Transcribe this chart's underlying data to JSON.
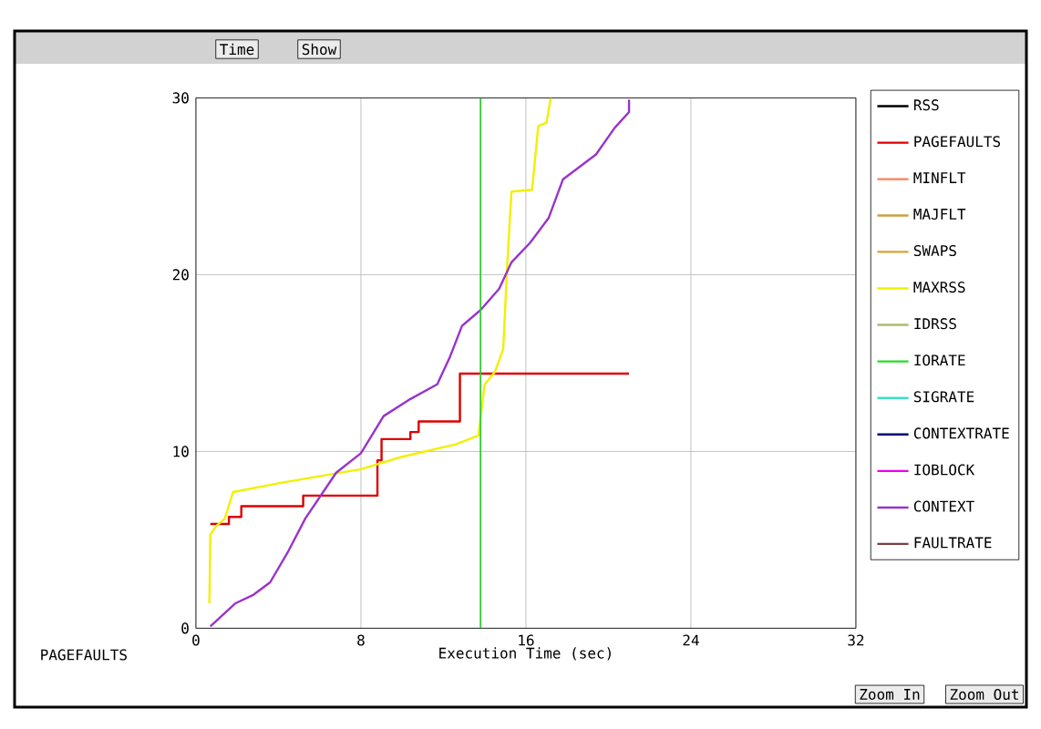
{
  "chart_data": {
    "type": "line",
    "xlabel": "Execution Time (sec)",
    "ylabel": "PAGEFAULTS",
    "xlim": [
      0,
      32
    ],
    "ylim": [
      0,
      30
    ],
    "xticks": [
      0,
      8,
      16,
      24,
      32
    ],
    "yticks": [
      0,
      10,
      20,
      30
    ],
    "grid": true,
    "legend": "right",
    "line_style": "solid",
    "marker": "none",
    "series": [
      {
        "name": "RSS",
        "color": "#000000"
      },
      {
        "name": "PAGEFAULTS",
        "color": "#dd0000",
        "type": "step",
        "x": [
          0.7,
          1.6,
          2.2,
          5.2,
          8.5,
          8.8,
          9.0,
          10.4,
          10.8,
          12.5,
          12.8,
          21.0
        ],
        "values": [
          5.9,
          6.3,
          6.9,
          7.5,
          7.5,
          9.5,
          10.7,
          11.1,
          11.7,
          11.7,
          14.4,
          14.4
        ]
      },
      {
        "name": "MINFLT",
        "color": "#ff7f50"
      },
      {
        "name": "MAJFLT",
        "color": "#c8a040"
      },
      {
        "name": "SWAPS",
        "color": "#e0a030"
      },
      {
        "name": "MAXRSS",
        "color": "#f0f000",
        "x": [
          0.65,
          0.7,
          1.0,
          1.4,
          1.8,
          4,
          8,
          10,
          12.6,
          13.7,
          14.0,
          14.5,
          14.9,
          15.1,
          15.3,
          16.3,
          16.6,
          17.0,
          17.2
        ],
        "values": [
          1.4,
          5.3,
          5.8,
          6.2,
          7.7,
          8.2,
          9.0,
          9.7,
          10.4,
          10.9,
          13.8,
          14.5,
          15.8,
          20.7,
          24.7,
          24.8,
          28.4,
          28.6,
          30
        ]
      },
      {
        "name": "IDRSS",
        "color": "#b0b870"
      },
      {
        "name": "IORATE",
        "color": "#22dd22"
      },
      {
        "name": "SIGRATE",
        "color": "#40e0c0"
      },
      {
        "name": "CONTEXTRATE",
        "color": "#000080"
      },
      {
        "name": "IOBLOCK",
        "color": "#ee00ee"
      },
      {
        "name": "CONTEXT",
        "color": "#9933cc",
        "x": [
          0.7,
          1.9,
          2.8,
          3.6,
          4.5,
          5.3,
          6.8,
          8.0,
          9.1,
          10.3,
          11.7,
          12.3,
          12.9,
          13.8,
          14.7,
          15.3,
          16.2,
          17.1,
          17.8,
          18.6,
          19.4,
          20.3,
          21.0,
          21.0
        ],
        "values": [
          0.1,
          1.4,
          1.9,
          2.6,
          4.4,
          6.2,
          8.8,
          9.9,
          12.0,
          12.9,
          13.8,
          15.3,
          17.1,
          18.0,
          19.2,
          20.7,
          21.8,
          23.2,
          25.4,
          26.1,
          26.8,
          28.3,
          29.2,
          29.9
        ]
      },
      {
        "name": "FAULTRATE",
        "color": "#804040"
      }
    ],
    "ref_lines": [
      {
        "axis": "x",
        "value": 13.8,
        "color": "#33cc33"
      }
    ],
    "annotations": [
      "Time",
      "Show",
      "Zoom In",
      "Zoom Out"
    ]
  }
}
